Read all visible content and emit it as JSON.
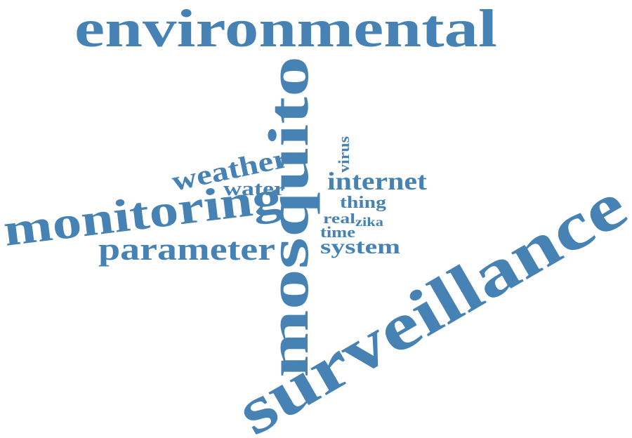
{
  "color": "#4682b4",
  "words": {
    "environmental": "environmental",
    "surveillance": "surveillance",
    "mosquito": "mosquito",
    "monitoring": "monitoring",
    "parameter": "parameter",
    "weather": "weather",
    "water": "water",
    "internet": "internet",
    "virus": "virus",
    "thing": "thing",
    "real": "real",
    "zika": "zika",
    "time": "time",
    "system": "system"
  }
}
